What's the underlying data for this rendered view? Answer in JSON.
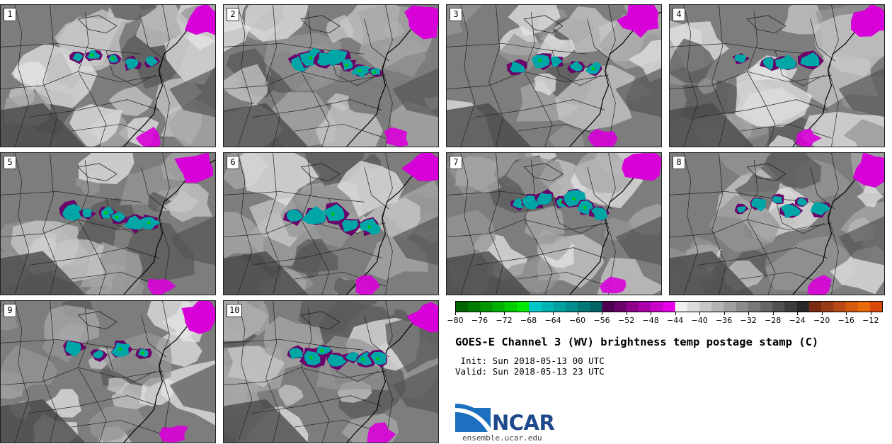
{
  "panels": [
    {
      "label": "1"
    },
    {
      "label": "2"
    },
    {
      "label": "3"
    },
    {
      "label": "4"
    },
    {
      "label": "5"
    },
    {
      "label": "6"
    },
    {
      "label": "7"
    },
    {
      "label": "8"
    },
    {
      "label": "9"
    },
    {
      "label": "10"
    }
  ],
  "colorbar": {
    "min": -80,
    "max": -10,
    "step": 2,
    "tick_labels": [
      "−80",
      "−76",
      "−72",
      "−68",
      "−64",
      "−60",
      "−56",
      "−52",
      "−48",
      "−44",
      "−40",
      "−36",
      "−32",
      "−28",
      "−24",
      "−20",
      "−16",
      "−12"
    ],
    "tick_values": [
      -80,
      -76,
      -72,
      -68,
      -64,
      -60,
      -56,
      -52,
      -48,
      -44,
      -40,
      -36,
      -32,
      -28,
      -24,
      -20,
      -16,
      -12
    ],
    "colors": [
      "#006400",
      "#007c00",
      "#009600",
      "#00b000",
      "#00cc00",
      "#00e800",
      "#00c8c8",
      "#00b4b4",
      "#00a0a0",
      "#008c8c",
      "#007878",
      "#006464",
      "#500050",
      "#6e006e",
      "#8c008c",
      "#aa00aa",
      "#c800c8",
      "#e600e6",
      "#f0f0f0",
      "#dcdcdc",
      "#c8c8c8",
      "#b4b4b4",
      "#a0a0a0",
      "#8c8c8c",
      "#787878",
      "#646464",
      "#505050",
      "#3c3c3c",
      "#282828",
      "#7a2a10",
      "#9a3a14",
      "#b84a16",
      "#d45a10",
      "#e86a0a",
      "#d84a0a"
    ]
  },
  "title": "GOES-E Channel 3 (WV) brightness temp postage stamp (C)",
  "init_line": " Init: Sun 2018-05-13 00 UTC",
  "valid_line": "Valid: Sun 2018-05-13 23 UTC",
  "logo": {
    "word": "NCAR",
    "url": "ensemble.ucar.edu",
    "color": "#1e4a8c"
  }
}
